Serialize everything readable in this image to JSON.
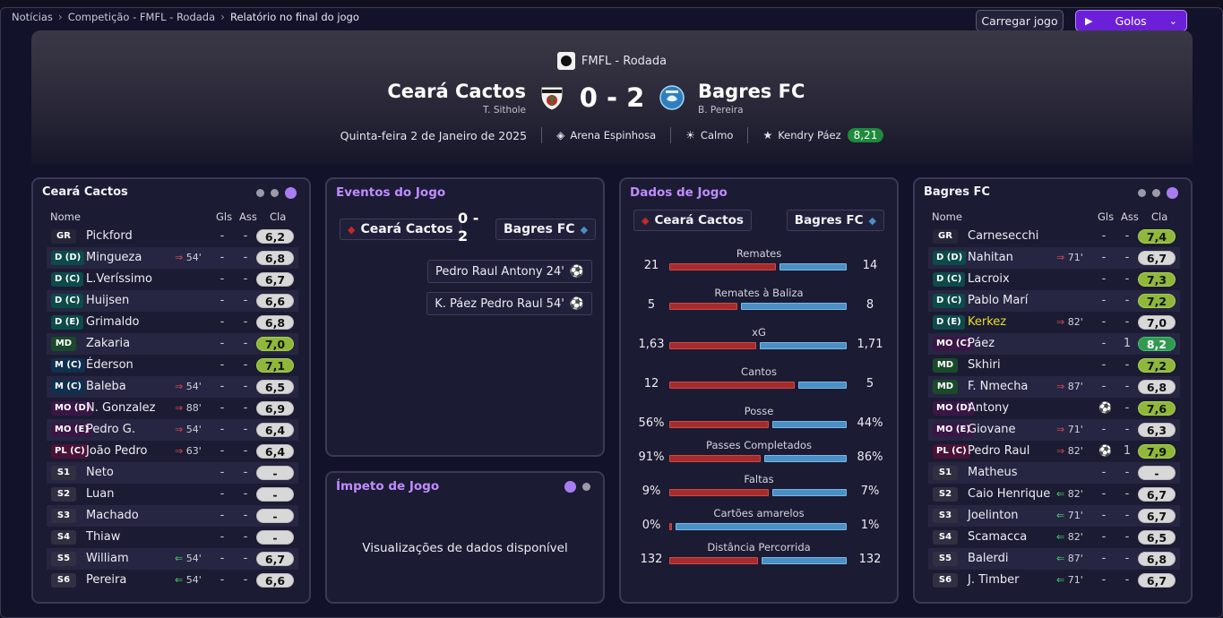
{
  "breadcrumb": [
    "Notícias",
    "Competição - FMFL - Rodada",
    "Relatório no final do jogo"
  ],
  "actions": {
    "load": "Carregar jogo",
    "goals": "Golos"
  },
  "header": {
    "competition": "FMFL - Rodada",
    "home": "Ceará Cactos",
    "away": "Bagres FC",
    "home_coach": "T. Sithole",
    "away_coach": "B. Pereira",
    "score": "0 - 2",
    "date": "Quinta-feira 2 de Janeiro de 2025",
    "stadium": "Arena Espinhosa",
    "weather": "Calmo",
    "potm": "Kendry Páez",
    "potm_rating": "8,21"
  },
  "home_panel": {
    "title": "Ceará Cactos",
    "headers": {
      "name": "Nome",
      "goals": "Gls",
      "assists": "Ass",
      "rating": "Cla"
    },
    "players": [
      {
        "pos": "GR",
        "cls": "gk",
        "name": "Pickford",
        "sub": "",
        "goals": "-",
        "assists": "-",
        "rating": "6,2",
        "rc": "n"
      },
      {
        "pos": "D (D)",
        "cls": "df",
        "name": "Mingueza",
        "sub": "54'",
        "out": true,
        "goals": "-",
        "assists": "-",
        "rating": "6,8",
        "rc": "n"
      },
      {
        "pos": "D (C)",
        "cls": "df",
        "name": "L.Veríssimo",
        "sub": "",
        "goals": "-",
        "assists": "-",
        "rating": "6,7",
        "rc": "n"
      },
      {
        "pos": "D (C)",
        "cls": "df",
        "name": "Huijsen",
        "sub": "",
        "goals": "-",
        "assists": "-",
        "rating": "6,6",
        "rc": "n"
      },
      {
        "pos": "D (E)",
        "cls": "df",
        "name": "Grimaldo",
        "sub": "",
        "goals": "-",
        "assists": "-",
        "rating": "6,8",
        "rc": "n"
      },
      {
        "pos": "MD",
        "cls": "md",
        "name": "Zakaria",
        "sub": "",
        "goals": "-",
        "assists": "-",
        "rating": "7,0",
        "rc": "y"
      },
      {
        "pos": "M (C)",
        "cls": "mc",
        "name": "Éderson",
        "sub": "",
        "goals": "-",
        "assists": "-",
        "rating": "7,1",
        "rc": "y"
      },
      {
        "pos": "M (C)",
        "cls": "mc",
        "name": "Baleba",
        "sub": "54'",
        "out": true,
        "goals": "-",
        "assists": "-",
        "rating": "6,5",
        "rc": "n"
      },
      {
        "pos": "MO (D)",
        "cls": "mo",
        "name": "N. Gonzalez",
        "sub": "88'",
        "out": true,
        "goals": "-",
        "assists": "-",
        "rating": "6,9",
        "rc": "n"
      },
      {
        "pos": "MO (E)",
        "cls": "mo",
        "name": "Pedro G.",
        "sub": "54'",
        "out": true,
        "goals": "-",
        "assists": "-",
        "rating": "6,4",
        "rc": "n"
      },
      {
        "pos": "PL (C)",
        "cls": "pl",
        "name": "João Pedro",
        "sub": "63'",
        "out": true,
        "goals": "-",
        "assists": "-",
        "rating": "6,4",
        "rc": "n"
      },
      {
        "pos": "S1",
        "cls": "sb",
        "name": "Neto",
        "sub": "",
        "goals": "-",
        "assists": "-",
        "rating": "-",
        "rc": "n"
      },
      {
        "pos": "S2",
        "cls": "sb",
        "name": "Luan",
        "sub": "",
        "goals": "-",
        "assists": "-",
        "rating": "-",
        "rc": "n"
      },
      {
        "pos": "S3",
        "cls": "sb",
        "name": "Machado",
        "sub": "",
        "goals": "-",
        "assists": "-",
        "rating": "-",
        "rc": "n"
      },
      {
        "pos": "S4",
        "cls": "sb",
        "name": "Thiaw",
        "sub": "",
        "goals": "-",
        "assists": "-",
        "rating": "-",
        "rc": "n"
      },
      {
        "pos": "S5",
        "cls": "sb",
        "name": "William",
        "sub": "54'",
        "in": true,
        "goals": "-",
        "assists": "-",
        "rating": "6,7",
        "rc": "n"
      },
      {
        "pos": "S6",
        "cls": "sb",
        "name": "Pereira",
        "sub": "54'",
        "in": true,
        "goals": "-",
        "assists": "-",
        "rating": "6,6",
        "rc": "n"
      }
    ]
  },
  "away_panel": {
    "title": "Bagres FC",
    "headers": {
      "name": "Nome",
      "goals": "Gls",
      "assists": "Ass",
      "rating": "Cla"
    },
    "players": [
      {
        "pos": "GR",
        "cls": "gk",
        "name": "Carnesecchi",
        "sub": "",
        "goals": "-",
        "assists": "-",
        "rating": "7,4",
        "rc": "y"
      },
      {
        "pos": "D (D)",
        "cls": "df",
        "name": "Nahitan",
        "sub": "71'",
        "out": true,
        "goals": "-",
        "assists": "-",
        "rating": "6,7",
        "rc": "n"
      },
      {
        "pos": "D (C)",
        "cls": "df",
        "name": "Lacroix",
        "sub": "",
        "goals": "-",
        "assists": "-",
        "rating": "7,3",
        "rc": "y"
      },
      {
        "pos": "D (C)",
        "cls": "df",
        "name": "Pablo Marí",
        "sub": "",
        "goals": "-",
        "assists": "-",
        "rating": "7,2",
        "rc": "y"
      },
      {
        "pos": "D (E)",
        "cls": "df",
        "name": "Kerkez",
        "hl": true,
        "sub": "82'",
        "out": true,
        "goals": "-",
        "assists": "-",
        "rating": "7,0",
        "rc": "n"
      },
      {
        "pos": "MO (C)",
        "cls": "mo",
        "name": "Páez",
        "sub": "",
        "goals": "-",
        "assists": "1",
        "rating": "8,2",
        "rc": "gr"
      },
      {
        "pos": "MD",
        "cls": "md",
        "name": "Skhiri",
        "sub": "",
        "goals": "-",
        "assists": "-",
        "rating": "7,2",
        "rc": "y"
      },
      {
        "pos": "MD",
        "cls": "md",
        "name": "F. Nmecha",
        "sub": "87'",
        "out": true,
        "goals": "-",
        "assists": "-",
        "rating": "6,8",
        "rc": "n"
      },
      {
        "pos": "MO (D)",
        "cls": "mo",
        "name": "Antony",
        "sub": "",
        "ball": true,
        "goals": "",
        "assists": "-",
        "rating": "7,6",
        "rc": "y"
      },
      {
        "pos": "MO (E)",
        "cls": "mo",
        "name": "Giovane",
        "sub": "71'",
        "out": true,
        "goals": "-",
        "assists": "-",
        "rating": "6,3",
        "rc": "n"
      },
      {
        "pos": "PL (C)",
        "cls": "pl",
        "name": "Pedro Raul",
        "sub": "82'",
        "out": true,
        "ball": true,
        "goals": "",
        "assists": "1",
        "rating": "7,9",
        "rc": "y"
      },
      {
        "pos": "S1",
        "cls": "sb",
        "name": "Matheus",
        "sub": "",
        "goals": "-",
        "assists": "-",
        "rating": "-",
        "rc": "n"
      },
      {
        "pos": "S2",
        "cls": "sb",
        "name": "Caio Henrique",
        "sub": "82'",
        "in": true,
        "goals": "-",
        "assists": "-",
        "rating": "6,7",
        "rc": "n"
      },
      {
        "pos": "S3",
        "cls": "sb",
        "name": "Joelinton",
        "sub": "71'",
        "in": true,
        "goals": "-",
        "assists": "-",
        "rating": "6,7",
        "rc": "n"
      },
      {
        "pos": "S4",
        "cls": "sb",
        "name": "Scamacca",
        "sub": "82'",
        "in": true,
        "goals": "-",
        "assists": "-",
        "rating": "6,5",
        "rc": "n"
      },
      {
        "pos": "S5",
        "cls": "sb",
        "name": "Balerdi",
        "sub": "87'",
        "in": true,
        "goals": "-",
        "assists": "-",
        "rating": "6,8",
        "rc": "n"
      },
      {
        "pos": "S6",
        "cls": "sb",
        "name": "J. Timber",
        "sub": "71'",
        "in": true,
        "goals": "-",
        "assists": "-",
        "rating": "6,7",
        "rc": "n"
      }
    ]
  },
  "events": {
    "title": "Eventos do Jogo",
    "home": "Ceará Cactos",
    "away": "Bagres FC",
    "score": "0 - 2",
    "items": [
      {
        "text": "Pedro Raul  Antony  24'"
      },
      {
        "text": "K. Páez  Pedro Raul  54'"
      }
    ]
  },
  "momentum": {
    "title": "Ímpeto de Jogo",
    "message": "Visualizações de dados disponível"
  },
  "stats": {
    "title": "Dados de Jogo",
    "home": "Ceará Cactos",
    "away": "Bagres FC",
    "items": [
      {
        "label": "Remates",
        "home": "21",
        "away": "14",
        "hv": 21,
        "av": 14
      },
      {
        "label": "Remates à Baliza",
        "home": "5",
        "away": "8",
        "hv": 5,
        "av": 8
      },
      {
        "label": "xG",
        "home": "1,63",
        "away": "1,71",
        "hv": 1.63,
        "av": 1.71
      },
      {
        "label": "Cantos",
        "home": "12",
        "away": "5",
        "hv": 12,
        "av": 5
      },
      {
        "label": "Posse",
        "home": "56%",
        "away": "44%",
        "hv": 56,
        "av": 44
      },
      {
        "label": "Passes Completados",
        "home": "91%",
        "away": "86%",
        "hv": 91,
        "av": 86
      },
      {
        "label": "Faltas",
        "home": "9%",
        "away": "7%",
        "hv": 9,
        "av": 7
      },
      {
        "label": "Cartões amarelos",
        "home": "0%",
        "away": "1%",
        "hv": 0,
        "av": 1
      },
      {
        "label": "Distância Percorrida",
        "home": "132",
        "away": "132",
        "hv": 132,
        "av": 132
      }
    ]
  }
}
